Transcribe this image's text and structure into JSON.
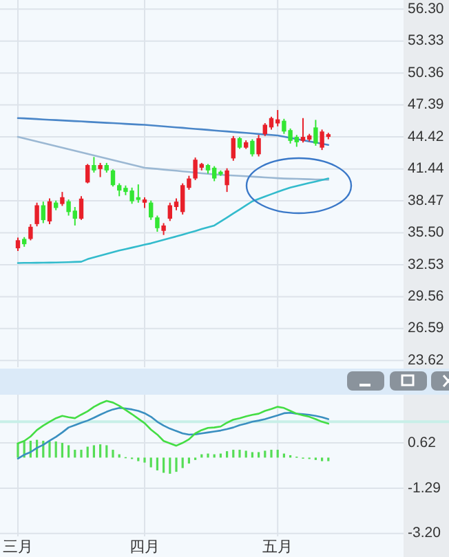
{
  "chart_data": [
    {
      "type": "candlestick",
      "categories": [
        null,
        null,
        null,
        null,
        null,
        null,
        null,
        null,
        null,
        null,
        null,
        null,
        null,
        null,
        null,
        null,
        null,
        null,
        null,
        null,
        null,
        null,
        null,
        null,
        null,
        null,
        null,
        null,
        null,
        null,
        null,
        null,
        null,
        null,
        null,
        null,
        null,
        null,
        null,
        null,
        null,
        null,
        null,
        null,
        null,
        null,
        null,
        null,
        null,
        null
      ],
      "ohlc": [
        [
          34.06,
          35.06,
          33.81,
          34.81
        ],
        [
          34.93,
          35.1,
          34.2,
          34.44
        ],
        [
          34.93,
          36.3,
          34.8,
          36.06
        ],
        [
          36.31,
          38.3,
          36.1,
          38.06
        ],
        [
          38.06,
          38.4,
          36.4,
          36.68
        ],
        [
          36.56,
          38.7,
          36.3,
          38.43
        ],
        [
          38.31,
          38.5,
          37.6,
          37.81
        ],
        [
          38.18,
          39.3,
          38.0,
          38.81
        ],
        [
          38.43,
          38.6,
          37.1,
          37.43
        ],
        [
          37.56,
          37.9,
          36.18,
          36.81
        ],
        [
          36.81,
          38.9,
          36.7,
          38.68
        ],
        [
          40.18,
          41.9,
          40.1,
          41.8
        ],
        [
          41.8,
          42.55,
          41.1,
          41.3
        ],
        [
          41.43,
          42.0,
          40.68,
          41.8
        ],
        [
          41.8,
          42.0,
          41.1,
          41.3
        ],
        [
          41.3,
          41.4,
          39.8,
          39.93
        ],
        [
          39.93,
          40.1,
          38.9,
          39.43
        ],
        [
          39.68,
          39.9,
          39.0,
          39.3
        ],
        [
          39.43,
          39.7,
          38.2,
          38.43
        ],
        [
          38.81,
          40.0,
          38.3,
          38.56
        ],
        [
          38.3,
          38.8,
          37.8,
          38.6
        ],
        [
          38.31,
          38.5,
          36.7,
          36.93
        ],
        [
          36.93,
          37.1,
          35.6,
          35.93
        ],
        [
          35.68,
          36.4,
          35.3,
          36.18
        ],
        [
          36.81,
          38.3,
          36.6,
          38.06
        ],
        [
          37.9,
          38.7,
          37.6,
          38.4
        ],
        [
          37.43,
          40.1,
          37.2,
          39.93
        ],
        [
          39.68,
          40.8,
          39.5,
          40.55
        ],
        [
          40.55,
          42.5,
          40.4,
          42.3
        ],
        [
          41.55,
          42.0,
          41.3,
          41.9
        ],
        [
          41.8,
          41.9,
          41.0,
          41.3
        ],
        [
          41.55,
          41.7,
          40.3,
          40.55
        ],
        [
          41.18,
          41.3,
          40.8,
          40.93
        ],
        [
          39.93,
          41.5,
          39.3,
          41.3
        ],
        [
          42.42,
          44.5,
          42.2,
          44.3
        ],
        [
          44.3,
          44.4,
          43.3,
          43.42
        ],
        [
          43.42,
          44.1,
          43.3,
          43.92
        ],
        [
          44.05,
          44.2,
          42.6,
          42.8
        ],
        [
          42.8,
          44.6,
          42.6,
          44.3
        ],
        [
          44.67,
          45.7,
          44.5,
          45.55
        ],
        [
          45.3,
          46.3,
          45.1,
          46.17
        ],
        [
          45.67,
          46.92,
          45.4,
          46.05
        ],
        [
          45.92,
          46.1,
          44.7,
          44.92
        ],
        [
          45.05,
          45.2,
          43.8,
          44.05
        ],
        [
          44.42,
          44.6,
          43.5,
          43.92
        ],
        [
          44.05,
          46.17,
          43.9,
          44.42
        ],
        [
          44.17,
          44.7,
          44.0,
          44.55
        ],
        [
          45.3,
          46.0,
          43.6,
          43.8
        ],
        [
          43.42,
          45.1,
          43.2,
          44.92
        ],
        [
          44.42,
          44.8,
          44.2,
          44.67
        ]
      ],
      "colors": [
        "#e8202a",
        "#33e633",
        "#e8202a",
        "#e8202a",
        "#33e633",
        "#e8202a",
        "#33e633",
        "#e8202a",
        "#33e633",
        "#33e633",
        "#e8202a",
        "#e8202a",
        "#33e633",
        "#e8202a",
        "#33e633",
        "#33e633",
        "#33e633",
        "#33e633",
        "#33e633",
        "#33e633",
        "#e8202a",
        "#33e633",
        "#33e633",
        "#e8202a",
        "#e8202a",
        "#e8202a",
        "#e8202a",
        "#e8202a",
        "#e8202a",
        "#e8202a",
        "#33e633",
        "#33e633",
        "#33e633",
        "#e8202a",
        "#e8202a",
        "#33e633",
        "#e8202a",
        "#33e633",
        "#e8202a",
        "#e8202a",
        "#e8202a",
        "#e8202a",
        "#33e633",
        "#33e633",
        "#33e633",
        "#e8202a",
        "#e8202a",
        "#33e633",
        "#e8202a",
        "#e8202a"
      ],
      "series": [
        {
          "type": "line",
          "color": "#4a86c8",
          "values": [
            46.17,
            46.14,
            46.11,
            46.08,
            46.04,
            46.01,
            45.98,
            45.95,
            45.92,
            45.89,
            45.86,
            45.82,
            45.79,
            45.76,
            45.73,
            45.7,
            45.67,
            45.63,
            45.6,
            45.57,
            45.54,
            45.49,
            45.45,
            45.4,
            45.35,
            45.3,
            45.26,
            45.21,
            45.16,
            45.12,
            45.07,
            45.02,
            44.97,
            44.93,
            44.88,
            44.83,
            44.79,
            44.74,
            44.69,
            44.64,
            44.6,
            44.55,
            44.44,
            44.33,
            44.22,
            44.11,
            44.0,
            43.89,
            43.78,
            43.67
          ]
        },
        {
          "type": "line",
          "color": "#9bb8d3",
          "values": [
            44.42,
            44.28,
            44.13,
            43.99,
            43.85,
            43.7,
            43.56,
            43.42,
            43.27,
            43.13,
            42.99,
            42.84,
            42.7,
            42.55,
            42.41,
            42.27,
            42.12,
            41.98,
            41.84,
            41.69,
            41.55,
            41.49,
            41.44,
            41.38,
            41.32,
            41.27,
            41.21,
            41.16,
            41.1,
            41.04,
            40.99,
            40.93,
            40.9,
            40.86,
            40.83,
            40.79,
            40.76,
            40.72,
            40.69,
            40.65,
            40.62,
            40.58,
            40.55,
            40.53,
            40.52,
            40.5,
            40.48,
            40.46,
            40.45,
            40.43
          ]
        },
        {
          "type": "line",
          "color": "#33bbcc",
          "values": [
            32.69,
            32.7,
            32.7,
            32.71,
            32.72,
            32.73,
            32.74,
            32.75,
            32.77,
            32.79,
            32.81,
            33.05,
            33.22,
            33.38,
            33.54,
            33.7,
            33.86,
            33.99,
            34.12,
            34.26,
            34.4,
            34.52,
            34.68,
            34.84,
            35.0,
            35.16,
            35.33,
            35.5,
            35.67,
            35.85,
            36.02,
            36.18,
            36.55,
            36.92,
            37.3,
            37.67,
            38.05,
            38.43,
            38.65,
            38.87,
            39.09,
            39.31,
            39.52,
            39.7,
            39.85,
            40.0,
            40.14,
            40.27,
            40.41,
            40.55
          ]
        }
      ],
      "ylim": [
        23.0,
        57.15
      ],
      "yticks": [
        23.62,
        26.59,
        29.56,
        32.53,
        {
          "value": 35.5,
          "label": "35.50"
        },
        38.47,
        41.44,
        44.42,
        47.39,
        50.36,
        53.33,
        {
          "value": 56.3,
          "label": "56.30"
        }
      ],
      "grid": true,
      "tick_labels": "y"
    },
    {
      "type": "line",
      "categories": [
        "三月",
        null,
        null,
        null,
        null,
        null,
        null,
        null,
        null,
        null,
        null,
        null,
        null,
        null,
        null,
        null,
        null,
        null,
        null,
        null,
        "四月",
        null,
        null,
        null,
        null,
        null,
        null,
        null,
        null,
        null,
        null,
        null,
        null,
        null,
        null,
        null,
        null,
        null,
        null,
        null,
        null,
        "五月",
        null,
        null,
        null,
        null,
        null,
        null,
        null,
        null
      ],
      "series": [
        {
          "type": "bar",
          "color": "#55dd55",
          "values": [
            0.62,
            0.68,
            0.71,
            0.75,
            0.71,
            0.68,
            0.68,
            0.62,
            0.52,
            0.33,
            0.33,
            0.46,
            0.52,
            0.56,
            0.52,
            0.33,
            0.14,
            0.02,
            -0.06,
            -0.15,
            -0.21,
            -0.41,
            -0.54,
            -0.64,
            -0.68,
            -0.6,
            -0.44,
            -0.25,
            -0.1,
            0.14,
            0.17,
            0.14,
            0.17,
            0.27,
            0.33,
            0.33,
            0.29,
            0.23,
            0.23,
            0.29,
            0.33,
            0.33,
            0.17,
            0.1,
            0.04,
            -0.02,
            -0.06,
            -0.1,
            -0.15,
            -0.15
          ]
        },
        {
          "type": "line",
          "color": "#3a8fc0",
          "values": [
            -0.04,
            0.12,
            0.23,
            0.41,
            0.54,
            0.71,
            0.87,
            1.06,
            1.27,
            1.37,
            1.47,
            1.56,
            1.68,
            1.81,
            1.93,
            2.03,
            2.09,
            2.07,
            2.03,
            1.97,
            1.87,
            1.72,
            1.51,
            1.35,
            1.22,
            1.12,
            1.02,
            0.97,
            0.98,
            1.02,
            1.06,
            1.1,
            1.14,
            1.2,
            1.27,
            1.37,
            1.43,
            1.51,
            1.56,
            1.62,
            1.7,
            1.78,
            1.87,
            1.89,
            1.85,
            1.83,
            1.8,
            1.76,
            1.7,
            1.62
          ]
        },
        {
          "type": "line",
          "color": "#44dd44",
          "values": [
            0.6,
            0.7,
            0.89,
            1.16,
            1.35,
            1.51,
            1.66,
            1.76,
            1.7,
            1.66,
            1.81,
            1.95,
            2.14,
            2.28,
            2.39,
            2.32,
            2.18,
            2.01,
            1.83,
            1.64,
            1.45,
            1.18,
            0.97,
            0.7,
            0.6,
            0.5,
            0.62,
            0.77,
            1.02,
            1.16,
            1.25,
            1.27,
            1.31,
            1.47,
            1.6,
            1.66,
            1.74,
            1.8,
            1.85,
            1.97,
            2.05,
            2.14,
            2.09,
            1.97,
            1.85,
            1.78,
            1.72,
            1.62,
            1.51,
            1.43
          ]
        }
      ],
      "ref_lines": [
        {
          "axis": "y",
          "value": 1.51,
          "color": "#c8efe8"
        }
      ],
      "ylim": [
        -3.32,
        2.65
      ],
      "yticks": [
        {
          "value": -3.2,
          "label": "-3.20"
        },
        -1.29,
        0.62
      ],
      "grid": true
    }
  ]
}
